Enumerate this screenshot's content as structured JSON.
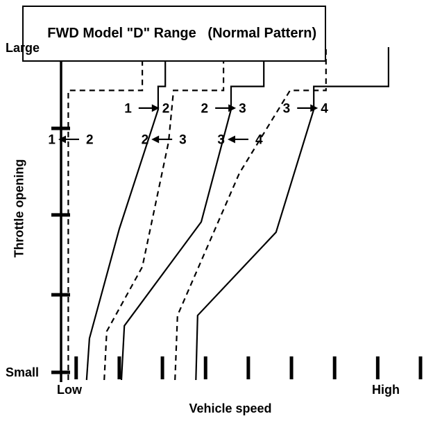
{
  "title": "FWD Model \"D\" Range   (Normal Pattern)",
  "axes": {
    "y_axis_label": "Throttle opening",
    "y_max_label": "Large",
    "y_min_label": "Small",
    "x_axis_label": "Vehicle speed",
    "x_min_label": "Low",
    "x_max_label": "High"
  },
  "chart_data": {
    "type": "line",
    "title": "FWD Model \"D\" Range (Normal Pattern)",
    "xlabel": "Vehicle speed",
    "ylabel": "Throttle opening",
    "x_range": [
      0,
      100
    ],
    "y_range": [
      0,
      100
    ],
    "x_tick_labels": {
      "min": "Low",
      "max": "High"
    },
    "y_tick_labels": {
      "min": "Small",
      "max": "Large"
    },
    "grid": false,
    "legend": "none",
    "line_color": "#000000",
    "x_ticks": [
      4.2,
      16.2,
      28.2,
      40.2,
      52.1,
      64.1,
      76.1,
      88.1,
      100
    ],
    "y_ticks": [
      2.3,
      25.6,
      49.6,
      75.6,
      100
    ],
    "series": [
      {
        "name": "2-1-downshift",
        "style": "dashed",
        "points": [
          [
            2,
            0
          ],
          [
            2,
            87
          ],
          [
            22.6,
            87
          ],
          [
            22.6,
            100
          ]
        ]
      },
      {
        "name": "1-2-upshift",
        "style": "solid",
        "points": [
          [
            7.1,
            0
          ],
          [
            7.9,
            12.5
          ],
          [
            16.2,
            45.4
          ],
          [
            27,
            81.3
          ],
          [
            27,
            88.2
          ],
          [
            29,
            88.2
          ],
          [
            29,
            100
          ]
        ]
      },
      {
        "name": "3-2-downshift",
        "style": "dashed",
        "points": [
          [
            12,
            0
          ],
          [
            12.7,
            14.6
          ],
          [
            22.6,
            34
          ],
          [
            29.9,
            71.5
          ],
          [
            31.3,
            87
          ],
          [
            45.2,
            87
          ],
          [
            45.2,
            100
          ]
        ]
      },
      {
        "name": "2-3-upshift",
        "style": "solid",
        "points": [
          [
            16.8,
            0
          ],
          [
            17.6,
            16.3
          ],
          [
            39,
            47.5
          ],
          [
            47.3,
            81.3
          ],
          [
            47.3,
            88.2
          ],
          [
            56.4,
            88.2
          ],
          [
            56.4,
            100
          ]
        ]
      },
      {
        "name": "4-3-downshift",
        "style": "dashed",
        "points": [
          [
            31.7,
            0
          ],
          [
            32.4,
            19.4
          ],
          [
            49.6,
            62.1
          ],
          [
            63.7,
            87
          ],
          [
            73.7,
            87
          ],
          [
            73.7,
            100
          ]
        ]
      },
      {
        "name": "3-4-upshift",
        "style": "solid",
        "points": [
          [
            37.5,
            0
          ],
          [
            38,
            19.4
          ],
          [
            59.8,
            44.4
          ],
          [
            70.3,
            81.3
          ],
          [
            70.3,
            88.2
          ],
          [
            91.1,
            88.2
          ],
          [
            91.1,
            100
          ]
        ]
      }
    ],
    "annotations": [
      {
        "left": "1",
        "right": "2",
        "dir": "right",
        "x": 23.9,
        "y": 81.7
      },
      {
        "left": "2",
        "right": "3",
        "dir": "right",
        "x": 45.2,
        "y": 81.7
      },
      {
        "left": "3",
        "right": "4",
        "dir": "right",
        "x": 68.0,
        "y": 81.7
      },
      {
        "left": "1",
        "right": "2",
        "dir": "left",
        "x": 2.7,
        "y": 72.3
      },
      {
        "left": "2",
        "right": "3",
        "dir": "left",
        "x": 28.6,
        "y": 72.3
      },
      {
        "left": "3",
        "right": "4",
        "dir": "left",
        "x": 49.8,
        "y": 72.3
      }
    ]
  }
}
